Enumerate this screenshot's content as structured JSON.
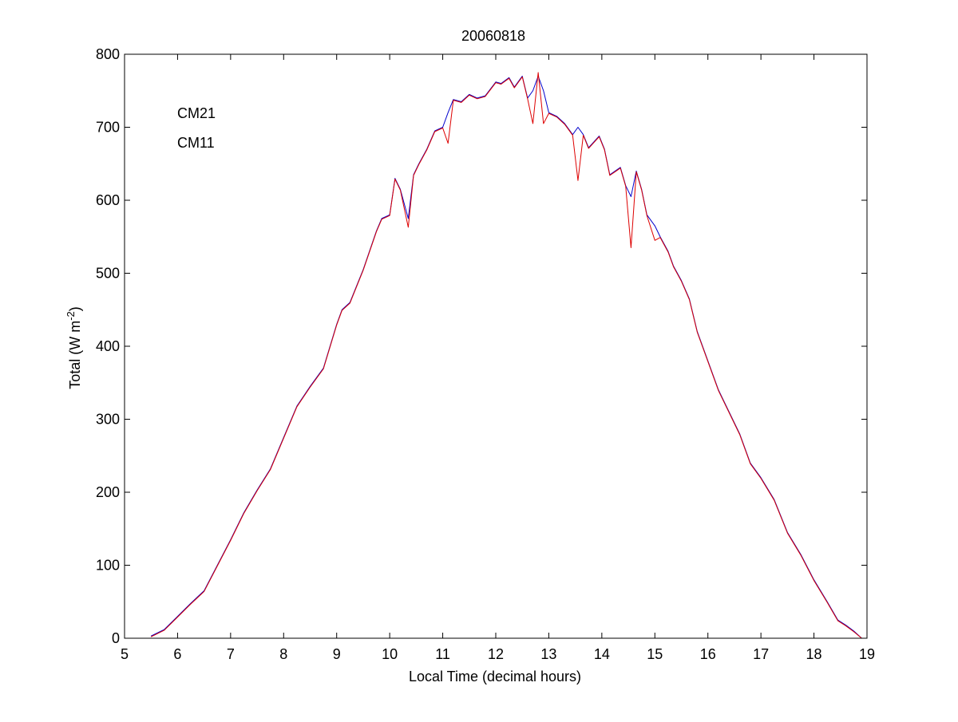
{
  "chart_data": {
    "type": "line",
    "title": "20060818",
    "xlabel": "Local Time (decimal hours)",
    "ylabel": {
      "base": "Total (W m",
      "superscript": "-2",
      "close": ")"
    },
    "xlim": [
      5,
      19
    ],
    "ylim": [
      0,
      800
    ],
    "xticks": [
      5,
      6,
      7,
      8,
      9,
      10,
      11,
      12,
      13,
      14,
      15,
      16,
      17,
      18,
      19
    ],
    "yticks": [
      0,
      100,
      200,
      300,
      400,
      500,
      600,
      700,
      800
    ],
    "grid": false,
    "legend": {
      "placement": "top-left"
    },
    "series": [
      {
        "name": "CM21",
        "color": "#0000cc",
        "x": [
          5.5,
          5.75,
          6.0,
          6.25,
          6.5,
          6.75,
          7.0,
          7.25,
          7.5,
          7.75,
          8.0,
          8.25,
          8.5,
          8.75,
          9.0,
          9.1,
          9.25,
          9.5,
          9.75,
          9.85,
          10.0,
          10.1,
          10.2,
          10.35,
          10.45,
          10.55,
          10.7,
          10.85,
          11.0,
          11.1,
          11.2,
          11.35,
          11.5,
          11.65,
          11.8,
          12.0,
          12.1,
          12.25,
          12.35,
          12.5,
          12.6,
          12.7,
          12.8,
          12.9,
          13.0,
          13.15,
          13.3,
          13.45,
          13.55,
          13.65,
          13.75,
          13.85,
          13.95,
          14.05,
          14.15,
          14.25,
          14.35,
          14.45,
          14.55,
          14.65,
          14.75,
          14.85,
          15.0,
          15.1,
          15.25,
          15.35,
          15.5,
          15.65,
          15.8,
          16.0,
          16.2,
          16.4,
          16.6,
          16.8,
          17.0,
          17.25,
          17.5,
          17.75,
          18.0,
          18.25,
          18.45,
          18.6,
          18.75,
          18.9
        ],
        "y": [
          3,
          12,
          30,
          48,
          65,
          100,
          135,
          172,
          203,
          232,
          275,
          318,
          345,
          370,
          430,
          450,
          460,
          505,
          558,
          575,
          580,
          630,
          615,
          575,
          635,
          650,
          670,
          695,
          700,
          720,
          738,
          735,
          745,
          740,
          743,
          762,
          760,
          768,
          755,
          770,
          740,
          750,
          770,
          750,
          720,
          715,
          705,
          690,
          700,
          690,
          672,
          680,
          688,
          670,
          635,
          640,
          645,
          620,
          605,
          640,
          615,
          580,
          565,
          550,
          530,
          510,
          490,
          465,
          420,
          380,
          340,
          310,
          280,
          240,
          220,
          190,
          145,
          115,
          80,
          50,
          25,
          18,
          10,
          0
        ]
      },
      {
        "name": "CM11",
        "color": "#dd0000",
        "x": [
          5.5,
          5.75,
          6.0,
          6.25,
          6.5,
          6.75,
          7.0,
          7.25,
          7.5,
          7.75,
          8.0,
          8.25,
          8.5,
          8.75,
          9.0,
          9.1,
          9.25,
          9.5,
          9.75,
          9.85,
          10.0,
          10.1,
          10.2,
          10.35,
          10.45,
          10.55,
          10.7,
          10.85,
          11.0,
          11.1,
          11.2,
          11.35,
          11.5,
          11.65,
          11.8,
          12.0,
          12.1,
          12.25,
          12.35,
          12.5,
          12.6,
          12.7,
          12.8,
          12.9,
          13.0,
          13.15,
          13.3,
          13.45,
          13.55,
          13.65,
          13.75,
          13.85,
          13.95,
          14.05,
          14.15,
          14.25,
          14.35,
          14.45,
          14.55,
          14.65,
          14.75,
          14.85,
          15.0,
          15.1,
          15.25,
          15.35,
          15.5,
          15.65,
          15.8,
          16.0,
          16.2,
          16.4,
          16.6,
          16.8,
          17.0,
          17.25,
          17.5,
          17.75,
          18.0,
          18.25,
          18.45,
          18.6,
          18.75,
          18.9
        ],
        "y": [
          2,
          11,
          29,
          47,
          64,
          99,
          134,
          171,
          202,
          231,
          274,
          317,
          344,
          369,
          429,
          449,
          459,
          504,
          557,
          574,
          579,
          629,
          614,
          563,
          634,
          649,
          669,
          694,
          699,
          678,
          737,
          734,
          744,
          739,
          742,
          761,
          759,
          767,
          754,
          769,
          739,
          705,
          775,
          705,
          719,
          714,
          704,
          689,
          627,
          689,
          671,
          679,
          687,
          669,
          634,
          639,
          644,
          619,
          535,
          639,
          614,
          579,
          545,
          549,
          529,
          509,
          489,
          464,
          419,
          379,
          339,
          309,
          279,
          239,
          219,
          189,
          144,
          114,
          79,
          49,
          24,
          17,
          9,
          0
        ]
      }
    ]
  }
}
